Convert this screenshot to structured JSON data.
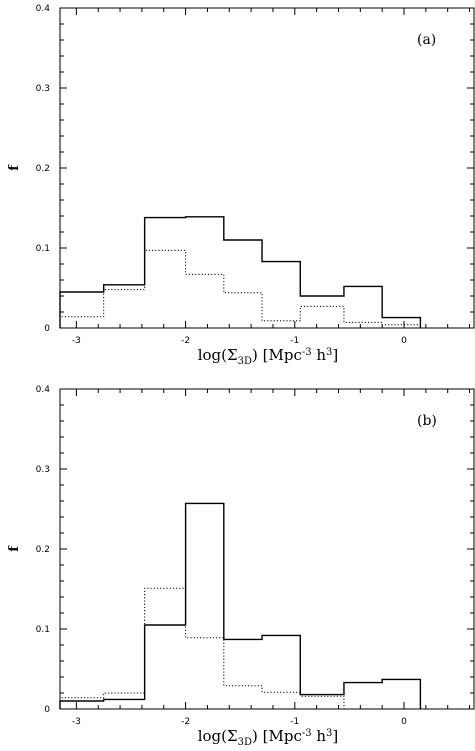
{
  "chart_data": [
    {
      "type": "histogram",
      "panel_label": "(a)",
      "xlabel_main": "log(Σ",
      "xlabel_sub": "3D",
      "xlabel_close": ")",
      "xlabel_units": "[Mpc",
      "xlabel_units_sup": "-3",
      "xlabel_units_h": " h",
      "xlabel_units_hsup": "3",
      "xlabel_units_close": "]",
      "ylabel": "f",
      "xlim": [
        -3.15,
        0.65
      ],
      "ylim": [
        0,
        0.4
      ],
      "x_ticks": [
        -3,
        -2,
        -1,
        0
      ],
      "x_tick_labels": [
        "-3",
        "-2",
        "-1",
        "0"
      ],
      "y_ticks": [
        0,
        0.1,
        0.2,
        0.3,
        0.4
      ],
      "y_tick_labels": [
        "0",
        "0.1",
        "0.2",
        "0.3",
        "0.4"
      ],
      "bin_edges": [
        -3.15,
        -2.75,
        -2.375,
        -2.0,
        -1.65,
        -1.3,
        -0.95,
        -0.55,
        -0.2,
        0.15
      ],
      "series": [
        {
          "style": "solid",
          "values": [
            0.045,
            0.054,
            0.138,
            0.139,
            0.11,
            0.083,
            0.04,
            0.052,
            0.013
          ]
        },
        {
          "style": "dotted",
          "values": [
            0.014,
            0.048,
            0.097,
            0.067,
            0.044,
            0.009,
            0.027,
            0.007,
            0.004
          ]
        }
      ]
    },
    {
      "type": "histogram",
      "panel_label": "(b)",
      "xlabel_main": "log(Σ",
      "xlabel_sub": "3D",
      "xlabel_close": ")",
      "xlabel_units": "[Mpc",
      "xlabel_units_sup": "-3",
      "xlabel_units_h": " h",
      "xlabel_units_hsup": "3",
      "xlabel_units_close": "]",
      "ylabel": "f",
      "xlim": [
        -3.15,
        0.65
      ],
      "ylim": [
        0,
        0.4
      ],
      "x_ticks": [
        -3,
        -2,
        -1,
        0
      ],
      "x_tick_labels": [
        "-3",
        "-2",
        "-1",
        "0"
      ],
      "y_ticks": [
        0,
        0.1,
        0.2,
        0.3,
        0.4
      ],
      "y_tick_labels": [
        "0",
        "0.1",
        "0.2",
        "0.3",
        "0.4"
      ],
      "bin_edges": [
        -3.15,
        -2.75,
        -2.375,
        -2.0,
        -1.65,
        -1.3,
        -0.95,
        -0.55,
        -0.2,
        0.15
      ],
      "series": [
        {
          "style": "solid",
          "values": [
            0.01,
            0.012,
            0.105,
            0.257,
            0.087,
            0.092,
            0.018,
            0.033,
            0.037
          ]
        },
        {
          "style": "dotted",
          "values": [
            0.014,
            0.02,
            0.151,
            0.089,
            0.029,
            0.021,
            0.016,
            0,
            0
          ]
        }
      ]
    }
  ]
}
